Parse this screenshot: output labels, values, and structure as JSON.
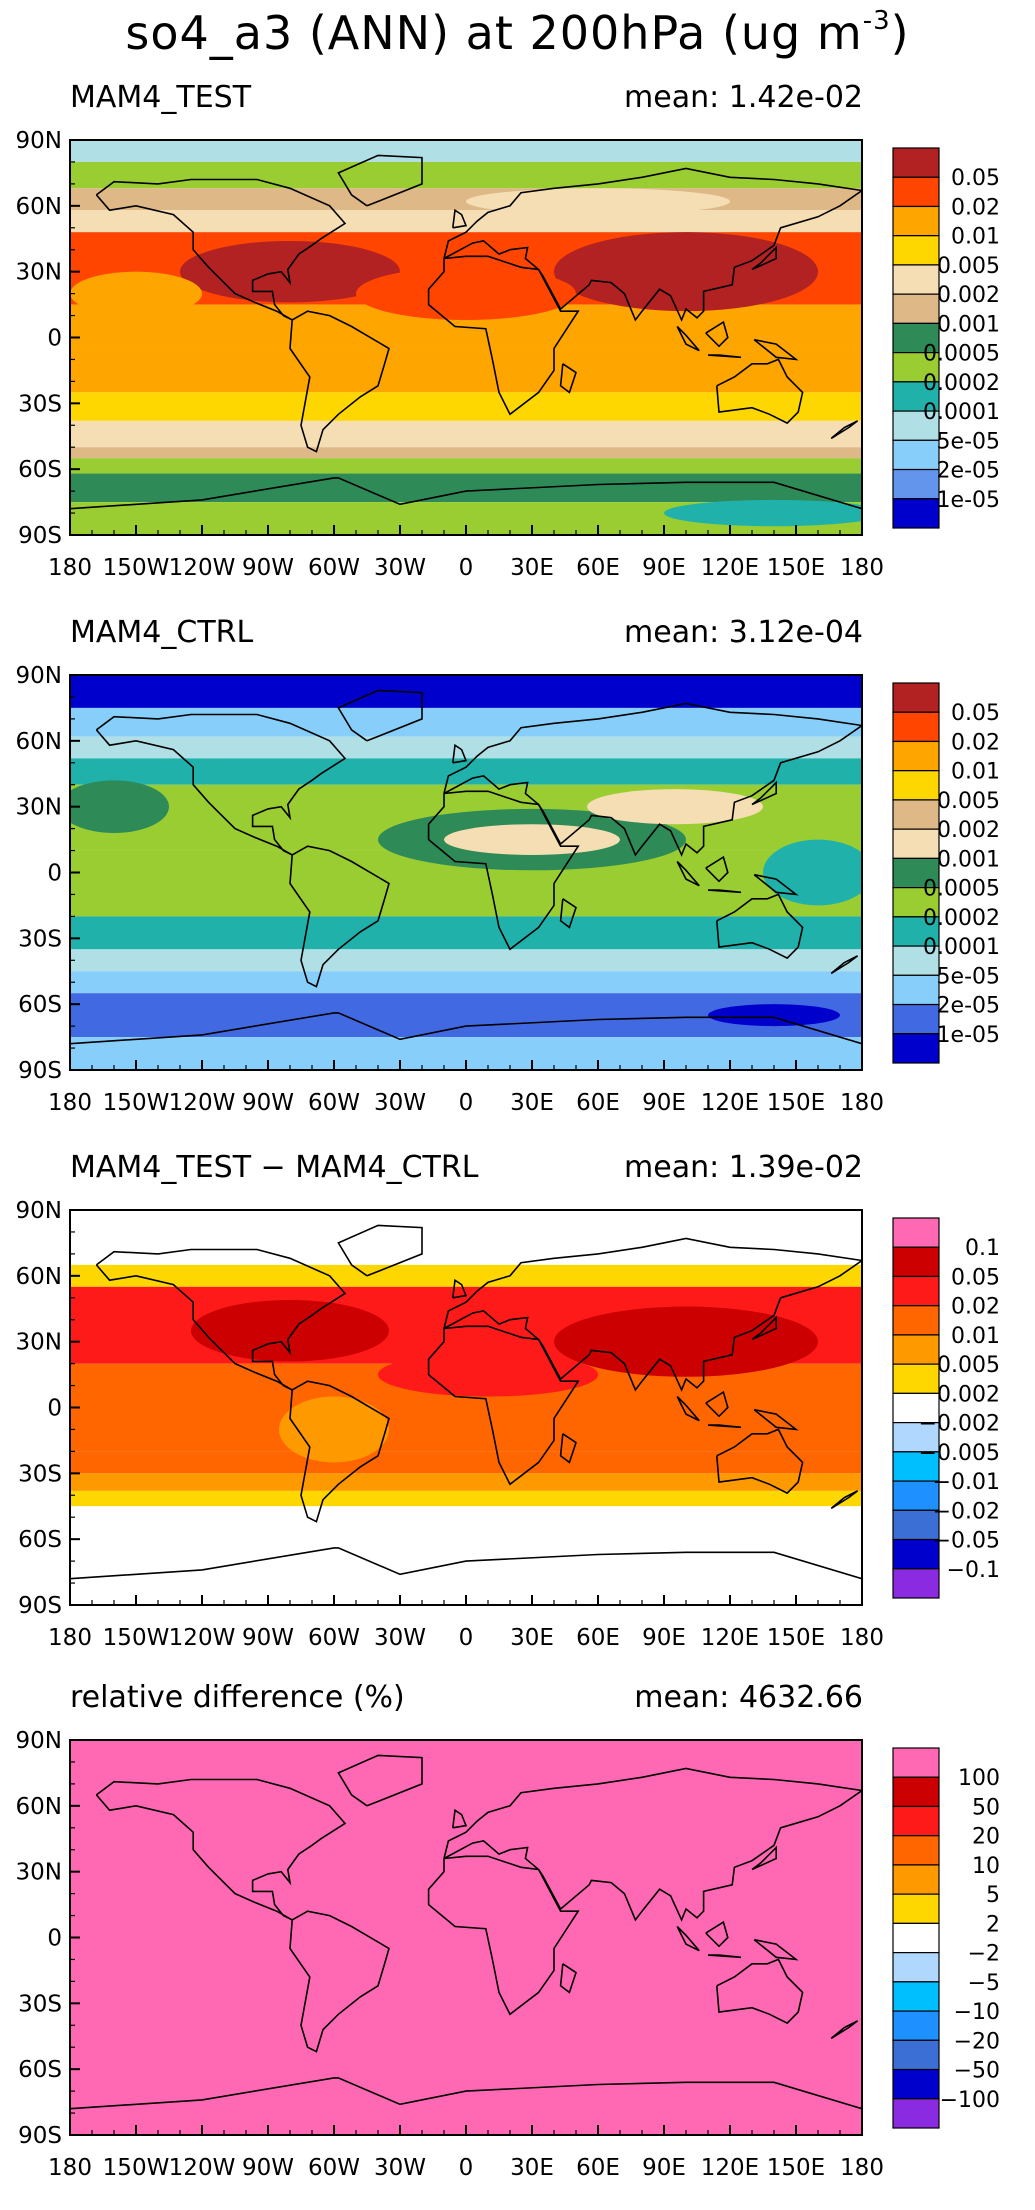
{
  "title": {
    "text": "so4_a3 (ANN) at 200hPa (ug m",
    "exponent": "-3",
    "suffix": ")"
  },
  "chart_data": [
    {
      "type": "heatmap",
      "left_title": "MAM4_TEST",
      "right_title": "mean: 1.42e-02",
      "xticks": [
        "180",
        "150W",
        "120W",
        "90W",
        "60W",
        "30W",
        "0",
        "30E",
        "60E",
        "90E",
        "120E",
        "150E",
        "180"
      ],
      "yticks": [
        "90N",
        "60N",
        "30N",
        "0",
        "30S",
        "60S",
        "90S"
      ],
      "colorbar": {
        "labels": [
          "0.05",
          "0.02",
          "0.01",
          "0.005",
          "0.002",
          "0.001",
          "0.0005",
          "0.0002",
          "0.0001",
          "5e-05",
          "2e-05",
          "1e-05"
        ],
        "colors": [
          "#b22222",
          "#ff4500",
          "#ffa500",
          "#ffd700",
          "#f5deb3",
          "#deb887",
          "#2e8b57",
          "#9acd32",
          "#20b2aa",
          "#b0e0e6",
          "#87cefa",
          "#6495ed",
          "#0000cd"
        ]
      }
    },
    {
      "type": "heatmap",
      "left_title": "MAM4_CTRL",
      "right_title": "mean: 3.12e-04",
      "xticks": [
        "180",
        "150W",
        "120W",
        "90W",
        "60W",
        "30W",
        "0",
        "30E",
        "60E",
        "90E",
        "120E",
        "150E",
        "180"
      ],
      "yticks": [
        "90N",
        "60N",
        "30N",
        "0",
        "30S",
        "60S",
        "90S"
      ],
      "colorbar": {
        "labels": [
          "0.05",
          "0.02",
          "0.01",
          "0.005",
          "0.002",
          "0.001",
          "0.0005",
          "0.0002",
          "0.0001",
          "5e-05",
          "2e-05",
          "1e-05"
        ],
        "colors": [
          "#b22222",
          "#ff4500",
          "#ffa500",
          "#ffd700",
          "#deb887",
          "#f5deb3",
          "#2e8b57",
          "#9acd32",
          "#20b2aa",
          "#b0e0e6",
          "#87cefa",
          "#4169e1",
          "#0000cd"
        ]
      }
    },
    {
      "type": "heatmap",
      "left_title": "MAM4_TEST − MAM4_CTRL",
      "right_title": "mean: 1.39e-02",
      "xticks": [
        "180",
        "150W",
        "120W",
        "90W",
        "60W",
        "30W",
        "0",
        "30E",
        "60E",
        "90E",
        "120E",
        "150E",
        "180"
      ],
      "yticks": [
        "90N",
        "60N",
        "30N",
        "0",
        "30S",
        "60S",
        "90S"
      ],
      "colorbar": {
        "labels": [
          "0.1",
          "0.05",
          "0.02",
          "0.01",
          "0.005",
          "0.002",
          "−0.002",
          "−0.005",
          "−0.01",
          "−0.02",
          "−0.05",
          "−0.1"
        ],
        "colors": [
          "#ff69b4",
          "#cc0000",
          "#ff1a1a",
          "#ff6600",
          "#ff9900",
          "#ffd700",
          "#ffffff",
          "#b0d8ff",
          "#00bfff",
          "#1e90ff",
          "#3c6fd6",
          "#0000cd",
          "#8a2be2"
        ]
      }
    },
    {
      "type": "heatmap",
      "left_title": "relative difference (%)",
      "right_title": "mean: 4632.66",
      "xticks": [
        "180",
        "150W",
        "120W",
        "90W",
        "60W",
        "30W",
        "0",
        "30E",
        "60E",
        "90E",
        "120E",
        "150E",
        "180"
      ],
      "yticks": [
        "90N",
        "60N",
        "30N",
        "0",
        "30S",
        "60S",
        "90S"
      ],
      "colorbar": {
        "labels": [
          "100",
          "50",
          "20",
          "10",
          "5",
          "2",
          "−2",
          "−5",
          "−10",
          "−20",
          "−50",
          "−100"
        ],
        "colors": [
          "#ff69b4",
          "#cc0000",
          "#ff1a1a",
          "#ff6600",
          "#ff9900",
          "#ffd700",
          "#ffffff",
          "#b0d8ff",
          "#00bfff",
          "#1e90ff",
          "#3c6fd6",
          "#0000cd",
          "#8a2be2"
        ]
      }
    }
  ]
}
